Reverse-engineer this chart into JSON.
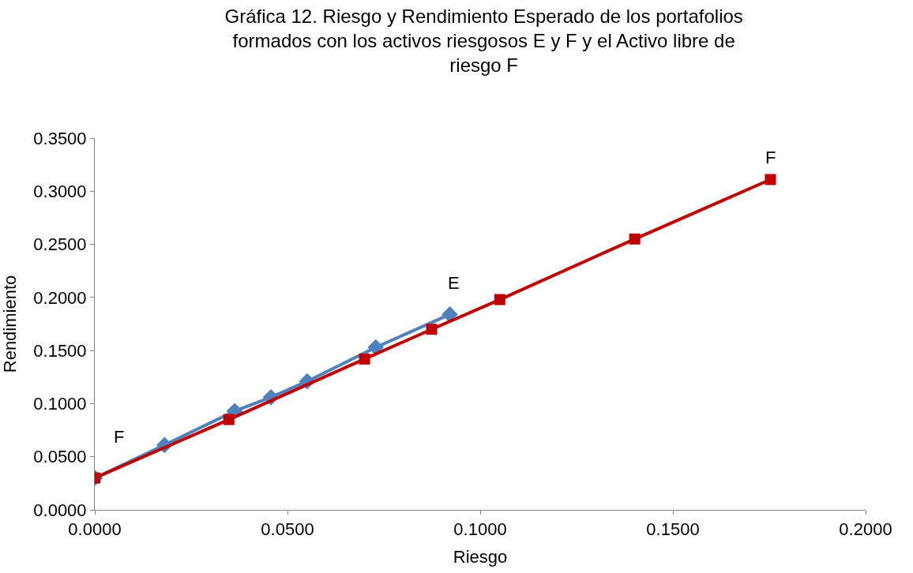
{
  "chart_data": {
    "type": "line",
    "title": "Gráfica 12. Riesgo y Rendimiento Esperado de los portafolios formados con los activos riesgosos E y F y el Activo libre de riesgo F",
    "xlabel": "Riesgo",
    "ylabel": "Rendimiento",
    "series": [
      {
        "color": "#4f81bd",
        "marker": "diamond",
        "x": [
          0,
          0.0181,
          0.0363,
          0.0457,
          0.0551,
          0.0729,
          0.0921
        ],
        "values": [
          0.03,
          0.061,
          0.093,
          0.106,
          0.121,
          0.153,
          0.184
        ]
      },
      {
        "color": "#c00000",
        "marker": "square",
        "x": [
          0,
          0.0348,
          0.07,
          0.0874,
          0.1051,
          0.1401,
          0.1753
        ],
        "values": [
          0.03,
          0.085,
          0.142,
          0.17,
          0.198,
          0.255,
          0.311
        ]
      }
    ],
    "annotations": [
      {
        "text": "F",
        "x": 0,
        "y": 0.03
      },
      {
        "text": "E",
        "x": 0.0921,
        "y": 0.184
      },
      {
        "text": "F",
        "x": 0.1753,
        "y": 0.311
      }
    ],
    "xlim": [
      0,
      0.2
    ],
    "xticks": [
      {
        "value": 0,
        "label": "0.0000"
      },
      {
        "value": 0.05,
        "label": "0.0500"
      },
      {
        "value": 0.1,
        "label": "0.1000"
      },
      {
        "value": 0.15,
        "label": "0.1500"
      },
      {
        "value": 0.2,
        "label": "0.2000"
      }
    ],
    "ylim": [
      0,
      0.35
    ],
    "yticks": [
      {
        "value": 0,
        "label": "0.0000"
      },
      {
        "value": 0.05,
        "label": "0.0500"
      },
      {
        "value": 0.1,
        "label": "0.1000"
      },
      {
        "value": 0.15,
        "label": "0.1500"
      },
      {
        "value": 0.2,
        "label": "0.2000"
      },
      {
        "value": 0.25,
        "label": "0.2500"
      },
      {
        "value": 0.3,
        "label": "0.3000"
      },
      {
        "value": 0.35,
        "label": "0.3500"
      }
    ]
  }
}
